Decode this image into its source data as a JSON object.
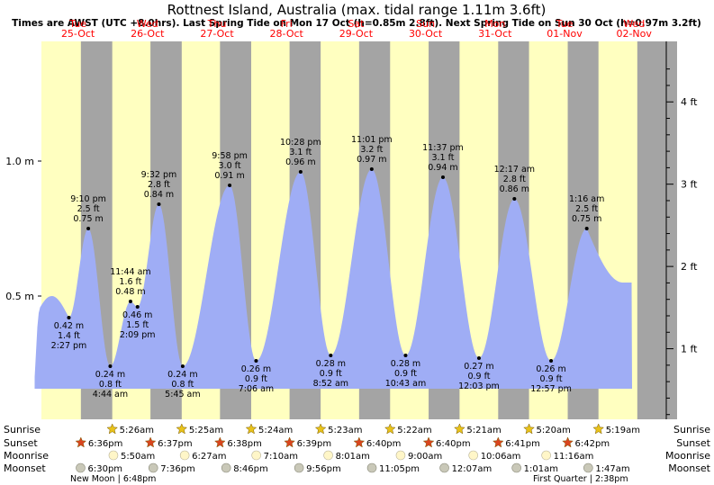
{
  "chart_data": {
    "type": "area",
    "title": "Rottnest Island, Australia (max. tidal range 1.11m 3.6ft)",
    "subtitle": "Times are AWST (UTC +8.0hrs). Last Spring Tide on Mon 17 Oct (h=0.85m 2.8ft). Next Spring Tide on Sun 30 Oct (h=0.97m 3.2ft)",
    "days": [
      {
        "dow": "Tue",
        "date": "25-Oct"
      },
      {
        "dow": "Wed",
        "date": "26-Oct"
      },
      {
        "dow": "Thu",
        "date": "27-Oct"
      },
      {
        "dow": "Fri",
        "date": "28-Oct"
      },
      {
        "dow": "Sat",
        "date": "29-Oct"
      },
      {
        "dow": "Sun",
        "date": "30-Oct"
      },
      {
        "dow": "Mon",
        "date": "31-Oct"
      },
      {
        "dow": "Tue",
        "date": "01-Nov"
      },
      {
        "dow": "Wed",
        "date": "02-Nov"
      }
    ],
    "y_left_ticks": [
      {
        "value": 0.5,
        "label": "0.5 m"
      },
      {
        "value": 1.0,
        "label": "1.0 m"
      }
    ],
    "y_right_ticks": [
      {
        "value": 1,
        "label": "1 ft"
      },
      {
        "value": 2,
        "label": "2 ft"
      },
      {
        "value": 3,
        "label": "3 ft"
      },
      {
        "value": 4,
        "label": "4 ft"
      }
    ],
    "ylim_m": [
      0.06,
      1.42
    ],
    "series_color": "#9fadf5",
    "day_color": "#ffffc0",
    "night_color": "#a4a4a4",
    "tides": [
      {
        "day": 0,
        "time": "2:27 pm",
        "ft": "1.4 ft",
        "m": "0.42 m",
        "h": 0.42,
        "type": "low"
      },
      {
        "day": 0,
        "time": "9:10 pm",
        "ft": "2.5 ft",
        "m": "0.75 m",
        "h": 0.75,
        "type": "high"
      },
      {
        "day": 1,
        "time": "4:44 am",
        "ft": "0.8 ft",
        "m": "0.24 m",
        "h": 0.24,
        "type": "low"
      },
      {
        "day": 1,
        "time": "11:44 am",
        "ft": "1.6 ft",
        "m": "0.48 m",
        "h": 0.48,
        "type": "high"
      },
      {
        "day": 1,
        "time": "2:09 pm",
        "ft": "1.5 ft",
        "m": "0.46 m",
        "h": 0.46,
        "type": "low"
      },
      {
        "day": 1,
        "time": "9:32 pm",
        "ft": "2.8 ft",
        "m": "0.84 m",
        "h": 0.84,
        "type": "high"
      },
      {
        "day": 2,
        "time": "5:45 am",
        "ft": "0.8 ft",
        "m": "0.24 m",
        "h": 0.24,
        "type": "low"
      },
      {
        "day": 2,
        "time": "9:58 pm",
        "ft": "3.0 ft",
        "m": "0.91 m",
        "h": 0.91,
        "type": "high"
      },
      {
        "day": 3,
        "time": "7:06 am",
        "ft": "0.9 ft",
        "m": "0.26 m",
        "h": 0.26,
        "type": "low"
      },
      {
        "day": 3,
        "time": "10:28 pm",
        "ft": "3.1 ft",
        "m": "0.96 m",
        "h": 0.96,
        "type": "high"
      },
      {
        "day": 4,
        "time": "8:52 am",
        "ft": "0.9 ft",
        "m": "0.28 m",
        "h": 0.28,
        "type": "low"
      },
      {
        "day": 4,
        "time": "11:01 pm",
        "ft": "3.2 ft",
        "m": "0.97 m",
        "h": 0.97,
        "type": "high"
      },
      {
        "day": 5,
        "time": "10:43 am",
        "ft": "0.9 ft",
        "m": "0.28 m",
        "h": 0.28,
        "type": "low"
      },
      {
        "day": 5,
        "time": "11:37 pm",
        "ft": "3.1 ft",
        "m": "0.94 m",
        "h": 0.94,
        "type": "high"
      },
      {
        "day": 6,
        "time": "12:03 pm",
        "ft": "0.9 ft",
        "m": "0.27 m",
        "h": 0.27,
        "type": "low"
      },
      {
        "day": 7,
        "time": "12:17 am",
        "ft": "2.8 ft",
        "m": "0.86 m",
        "h": 0.86,
        "type": "high"
      },
      {
        "day": 7,
        "time": "12:57 pm",
        "ft": "0.9 ft",
        "m": "0.26 m",
        "h": 0.26,
        "type": "low"
      },
      {
        "day": 8,
        "time": "1:16 am",
        "ft": "2.5 ft",
        "m": "0.75 m",
        "h": 0.75,
        "type": "high"
      }
    ],
    "astro_labels": {
      "sunrise": "Sunrise",
      "sunset": "Sunset",
      "moonrise": "Moonrise",
      "moonset": "Moonset"
    },
    "sunrise": [
      {
        "day": 1,
        "time": "5:26am"
      },
      {
        "day": 2,
        "time": "5:25am"
      },
      {
        "day": 3,
        "time": "5:24am"
      },
      {
        "day": 4,
        "time": "5:23am"
      },
      {
        "day": 5,
        "time": "5:22am"
      },
      {
        "day": 6,
        "time": "5:21am"
      },
      {
        "day": 7,
        "time": "5:20am"
      },
      {
        "day": 8,
        "time": "5:19am"
      }
    ],
    "sunset": [
      {
        "day": 0,
        "time": "6:36pm"
      },
      {
        "day": 1,
        "time": "6:37pm"
      },
      {
        "day": 2,
        "time": "6:38pm"
      },
      {
        "day": 3,
        "time": "6:39pm"
      },
      {
        "day": 4,
        "time": "6:40pm"
      },
      {
        "day": 5,
        "time": "6:40pm"
      },
      {
        "day": 6,
        "time": "6:41pm"
      },
      {
        "day": 7,
        "time": "6:42pm"
      }
    ],
    "moonrise": [
      {
        "day": 1,
        "time": "5:50am"
      },
      {
        "day": 2,
        "time": "6:27am"
      },
      {
        "day": 3,
        "time": "7:10am"
      },
      {
        "day": 4,
        "time": "8:01am"
      },
      {
        "day": 5,
        "time": "9:00am"
      },
      {
        "day": 6,
        "time": "10:06am"
      },
      {
        "day": 7,
        "time": "11:16am"
      }
    ],
    "moonset": [
      {
        "day": 0,
        "time": "6:30pm"
      },
      {
        "day": 1,
        "time": "7:36pm"
      },
      {
        "day": 2,
        "time": "8:46pm"
      },
      {
        "day": 3,
        "time": "9:56pm"
      },
      {
        "day": 4,
        "time": "11:05pm"
      },
      {
        "day": 6,
        "time": "12:07am"
      },
      {
        "day": 7,
        "time": "1:01am"
      },
      {
        "day": 8,
        "time": "1:47am"
      }
    ],
    "moon_phases": [
      {
        "label": "New Moon | 6:48pm"
      },
      {
        "label": "First Quarter | 2:38pm"
      }
    ]
  }
}
